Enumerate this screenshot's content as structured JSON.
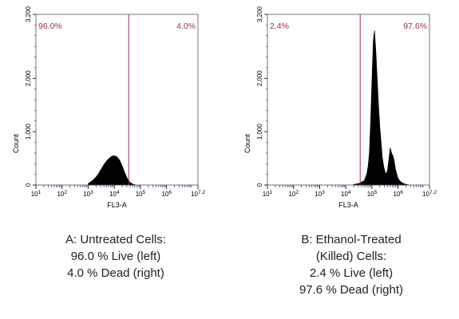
{
  "chart_data": [
    {
      "type": "histogram",
      "xlabel": "FL3-A",
      "ylabel": "Count",
      "ylim": [
        0,
        3200
      ],
      "yticks": [
        "0",
        "1,000",
        "2,000",
        "3,200"
      ],
      "xscale": "log",
      "xlim": [
        1,
        7.2
      ],
      "xticks": [
        "10^1",
        "10^2",
        "10^3",
        "10^4",
        "10^5",
        "10^6",
        "10^7.2"
      ],
      "gate_x": 4.55,
      "region_labels": [
        "96.0%",
        "4.0%"
      ],
      "bins_x": [
        3.0,
        3.1,
        3.2,
        3.3,
        3.4,
        3.5,
        3.6,
        3.7,
        3.8,
        3.9,
        4.0,
        4.1,
        4.2,
        4.3,
        4.4,
        4.5,
        4.6,
        4.7,
        4.8
      ],
      "values": [
        30,
        60,
        100,
        150,
        220,
        300,
        380,
        450,
        500,
        540,
        550,
        530,
        470,
        360,
        230,
        120,
        50,
        20,
        5
      ],
      "caption": [
        "A: Untreated Cells:",
        "96.0 % Live (left)",
        "4.0 % Dead (right)"
      ]
    },
    {
      "type": "histogram",
      "xlabel": "FL3-A",
      "ylabel": "Count",
      "ylim": [
        0,
        3200
      ],
      "yticks": [
        "0",
        "1,000",
        "2,000",
        "3,200"
      ],
      "xscale": "log",
      "xlim": [
        1,
        7.2
      ],
      "xticks": [
        "10^1",
        "10^2",
        "10^3",
        "10^4",
        "10^5",
        "10^6",
        "10^7.2"
      ],
      "gate_x": 4.55,
      "region_labels": [
        "2.4%",
        "97.6%"
      ],
      "bins_x": [
        4.3,
        4.5,
        4.7,
        4.8,
        4.85,
        4.9,
        4.95,
        5.0,
        5.05,
        5.1,
        5.15,
        5.2,
        5.25,
        5.3,
        5.35,
        5.4,
        5.45,
        5.5,
        5.55,
        5.6,
        5.65,
        5.7,
        5.75,
        5.8,
        5.85,
        5.9,
        5.95,
        6.0,
        6.1,
        6.2,
        6.3,
        6.4
      ],
      "values": [
        10,
        30,
        80,
        200,
        350,
        600,
        1200,
        2000,
        2700,
        2900,
        2500,
        2000,
        1500,
        1100,
        800,
        500,
        350,
        250,
        200,
        300,
        500,
        700,
        600,
        550,
        450,
        300,
        200,
        120,
        60,
        30,
        15,
        5
      ],
      "caption": [
        "B: Ethanol-Treated",
        "(Killed)  Cells:",
        "2.4 % Live (left)",
        "97.6 % Dead (right)"
      ]
    }
  ]
}
